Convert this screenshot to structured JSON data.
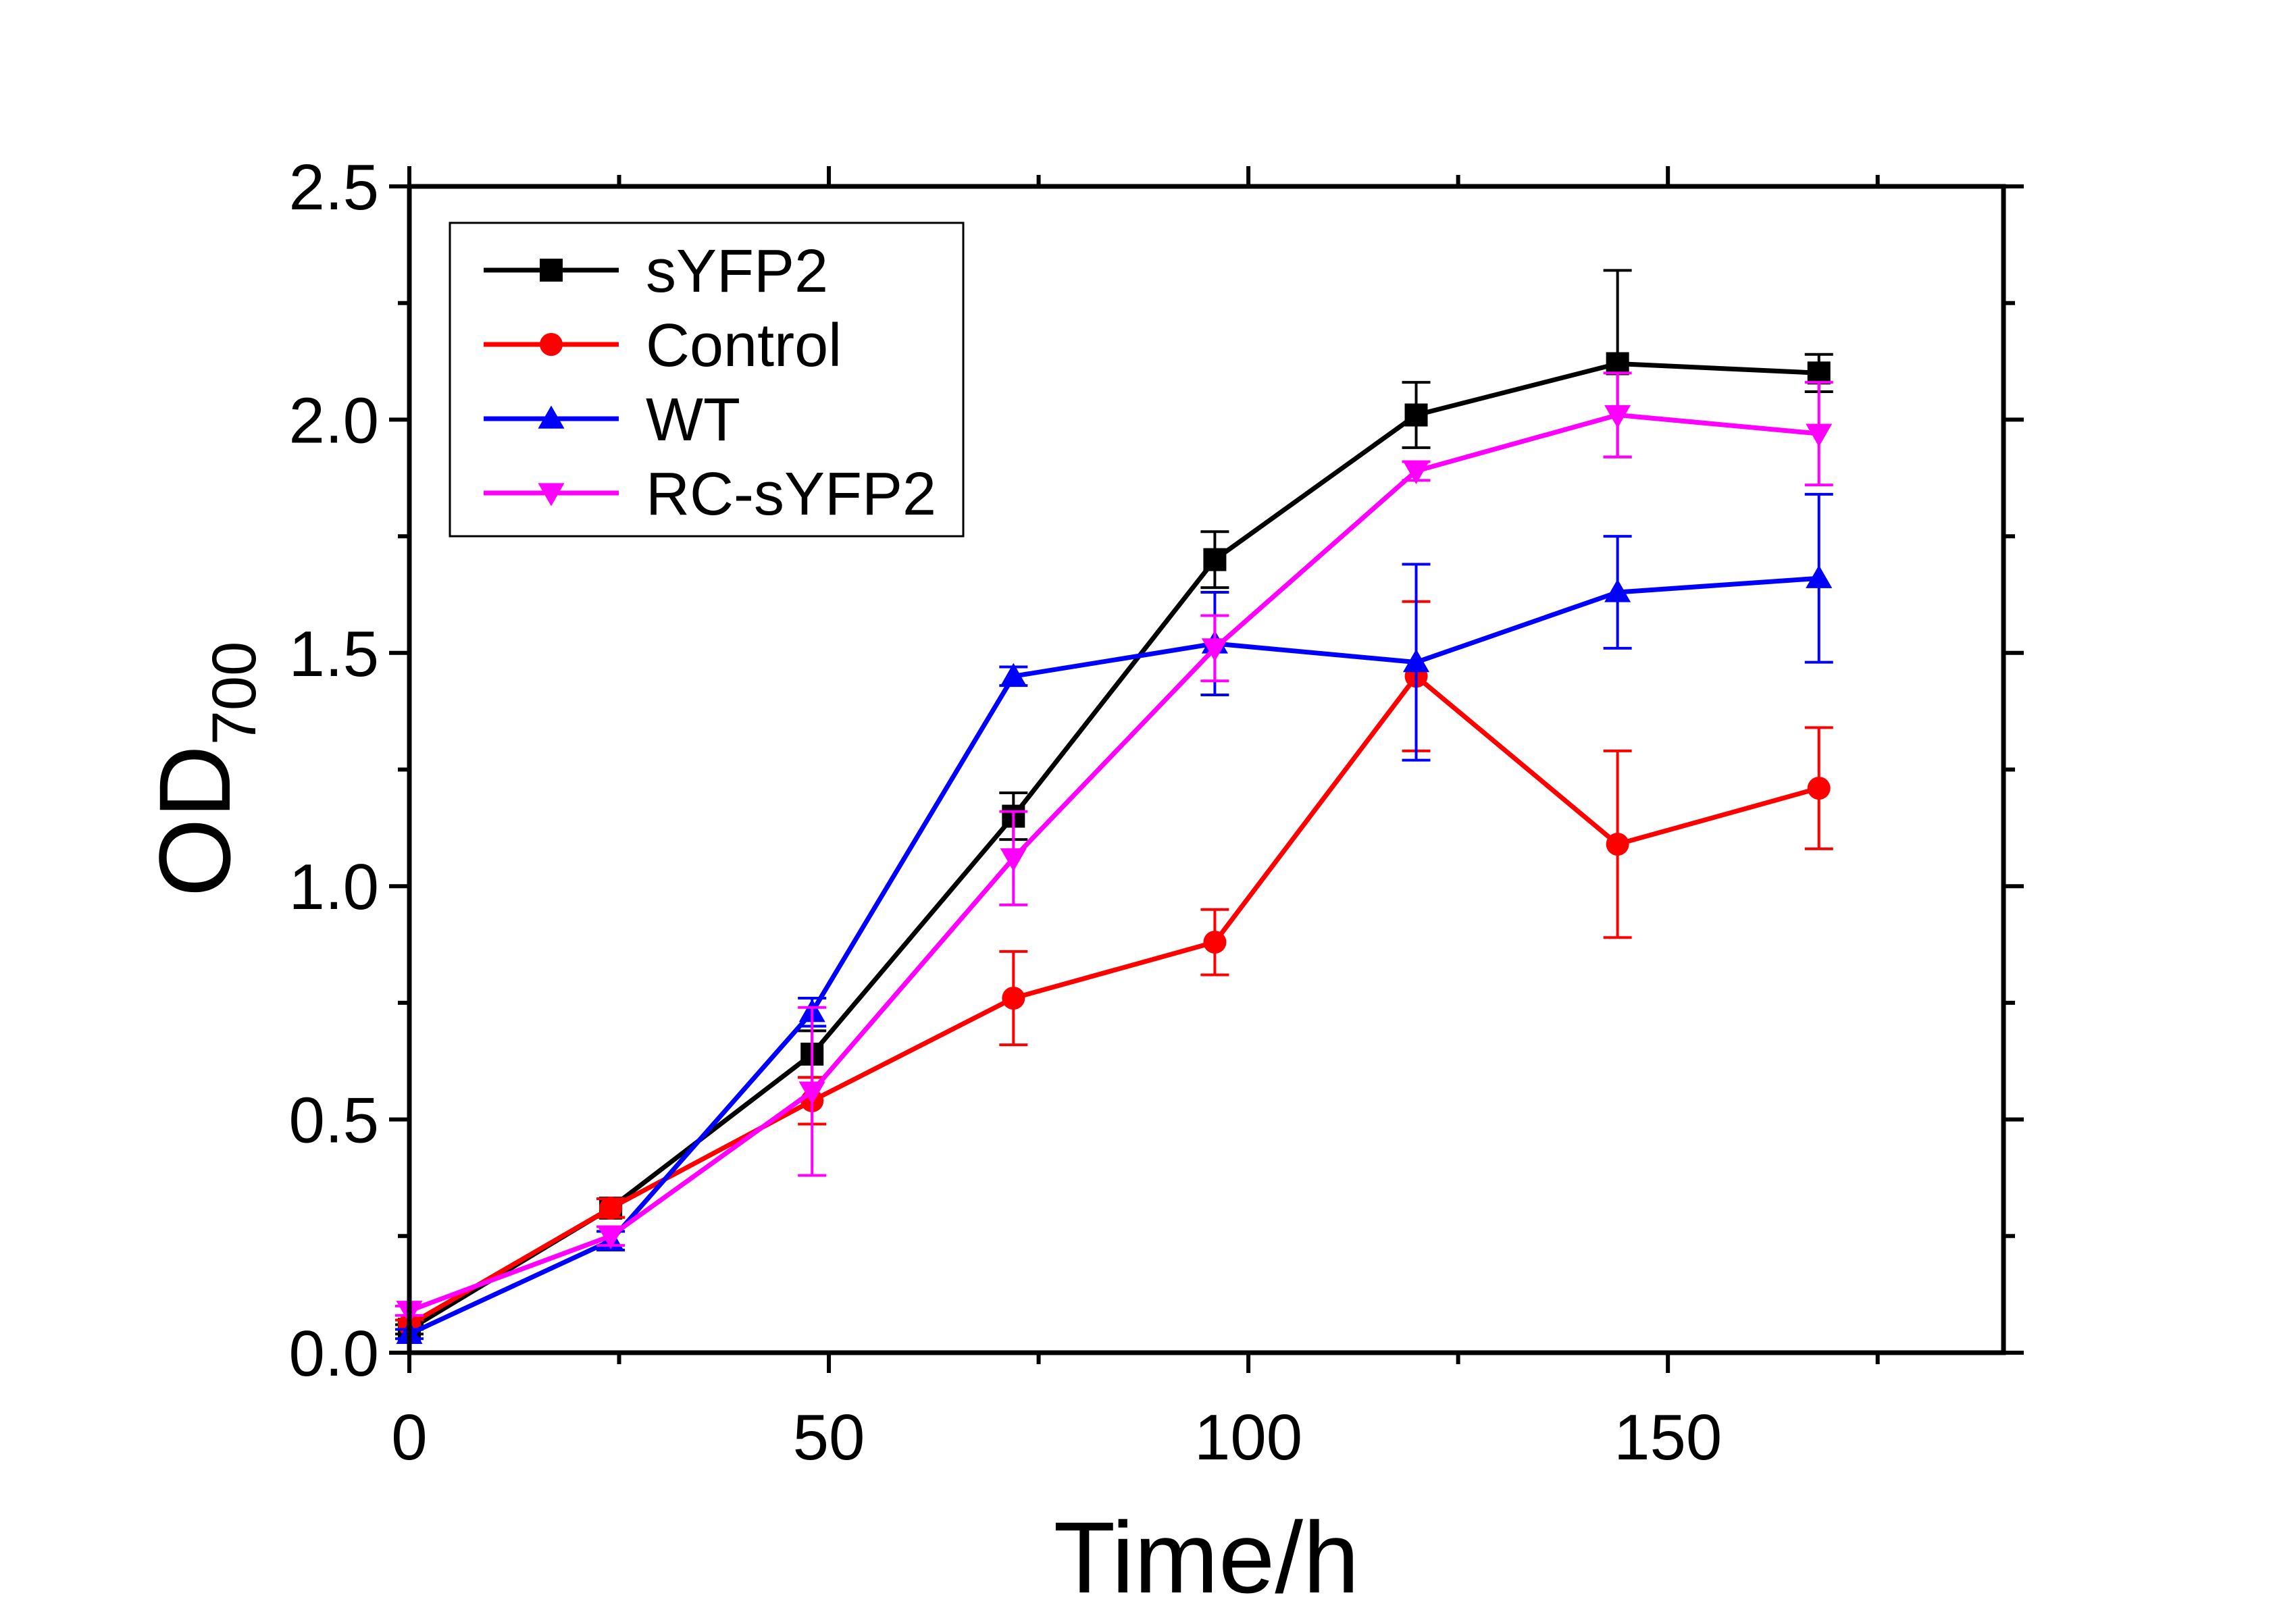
{
  "chart_data": {
    "type": "line",
    "title": "",
    "xlabel": "Time/h",
    "ylabel": "OD",
    "ylabel_subscript": "700",
    "xlim": [
      0,
      190
    ],
    "ylim": [
      0,
      2.5
    ],
    "x_ticks": [
      0,
      50,
      100,
      150
    ],
    "x_tick_labels": [
      "0",
      "50",
      "100",
      "150"
    ],
    "x_minor_ticks": [
      25,
      75,
      125,
      175
    ],
    "y_ticks": [
      0,
      0.5,
      1.0,
      1.5,
      2.0,
      2.5
    ],
    "y_tick_labels": [
      "0.0",
      "0.5",
      "1.0",
      "1.5",
      "2.0",
      "2.5"
    ],
    "y_minor_ticks": [
      0.25,
      0.75,
      1.25,
      1.75,
      2.25
    ],
    "grid": false,
    "legend_position": "top-left",
    "x": [
      0,
      24,
      48,
      72,
      96,
      120,
      144,
      168
    ],
    "series": [
      {
        "name": "sYFP2",
        "color": "#000000",
        "marker": "square",
        "values": [
          0.05,
          0.31,
          0.64,
          1.15,
          1.7,
          2.01,
          2.12,
          2.1
        ],
        "errors": [
          0.01,
          0.02,
          0.05,
          0.05,
          0.06,
          0.07,
          0.2,
          0.04
        ]
      },
      {
        "name": "Control",
        "color": "#ff0000",
        "marker": "circle",
        "values": [
          0.06,
          0.31,
          0.54,
          0.76,
          0.88,
          1.45,
          1.09,
          1.21
        ],
        "errors": [
          0.01,
          0.02,
          0.05,
          0.1,
          0.07,
          0.16,
          0.2,
          0.13
        ]
      },
      {
        "name": "WT",
        "color": "#0000ff",
        "marker": "triangle-up",
        "values": [
          0.04,
          0.24,
          0.73,
          1.45,
          1.52,
          1.48,
          1.63,
          1.66
        ],
        "errors": [
          0.01,
          0.02,
          0.03,
          0.02,
          0.11,
          0.21,
          0.12,
          0.18
        ]
      },
      {
        "name": "RC-sYFP2",
        "color": "#ff00ff",
        "marker": "triangle-down",
        "values": [
          0.09,
          0.25,
          0.56,
          1.06,
          1.51,
          1.89,
          2.01,
          1.97
        ],
        "errors": [
          0.01,
          0.02,
          0.18,
          0.1,
          0.07,
          0.02,
          0.09,
          0.11
        ]
      }
    ]
  }
}
